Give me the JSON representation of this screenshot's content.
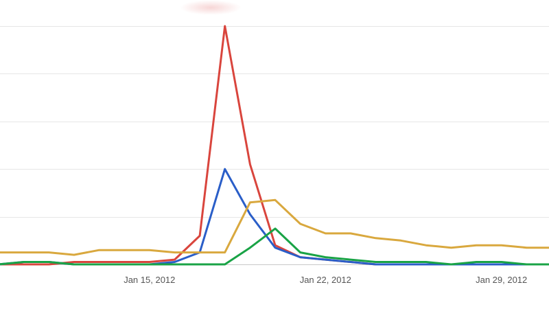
{
  "chart_data": {
    "type": "line",
    "title": "",
    "xlabel": "",
    "ylabel": "",
    "x": [
      "2012-01-09",
      "2012-01-10",
      "2012-01-11",
      "2012-01-12",
      "2012-01-13",
      "2012-01-14",
      "2012-01-15",
      "2012-01-16",
      "2012-01-17",
      "2012-01-18",
      "2012-01-19",
      "2012-01-20",
      "2012-01-21",
      "2012-01-22",
      "2012-01-23",
      "2012-01-24",
      "2012-01-25",
      "2012-01-26",
      "2012-01-27",
      "2012-01-28",
      "2012-01-29",
      "2012-01-30",
      "2012-01-31"
    ],
    "x_ticks": [
      {
        "x": "2012-01-15",
        "label": "Jan 15, 2012"
      },
      {
        "x": "2012-01-22",
        "label": "Jan 22, 2012"
      },
      {
        "x": "2012-01-29",
        "label": "Jan 29, 2012"
      }
    ],
    "ylim": [
      0,
      100
    ],
    "y_gridlines": [
      0,
      20,
      40,
      60,
      80,
      100
    ],
    "grid": true,
    "legend": "none",
    "series": [
      {
        "color": "#d9453d",
        "values": [
          0,
          0,
          0,
          1,
          1,
          1,
          1,
          2,
          12,
          100,
          42,
          8,
          3,
          2,
          1,
          0,
          0,
          0,
          0,
          0,
          0,
          0,
          0
        ]
      },
      {
        "color": "#2a5ec8",
        "values": [
          0,
          1,
          1,
          0,
          0,
          0,
          0,
          1,
          5,
          40,
          21,
          7,
          3,
          2,
          1,
          0,
          0,
          0,
          0,
          0,
          0,
          0,
          0
        ]
      },
      {
        "color": "#19a346",
        "values": [
          0,
          1,
          1,
          0,
          0,
          0,
          0,
          0,
          0,
          0,
          7,
          15,
          5,
          3,
          2,
          1,
          1,
          1,
          0,
          1,
          1,
          0,
          0
        ]
      },
      {
        "color": "#d9a83e",
        "values": [
          5,
          5,
          5,
          4,
          6,
          6,
          6,
          5,
          5,
          5,
          26,
          27,
          17,
          13,
          13,
          11,
          10,
          8,
          7,
          8,
          8,
          7,
          7
        ]
      }
    ]
  }
}
